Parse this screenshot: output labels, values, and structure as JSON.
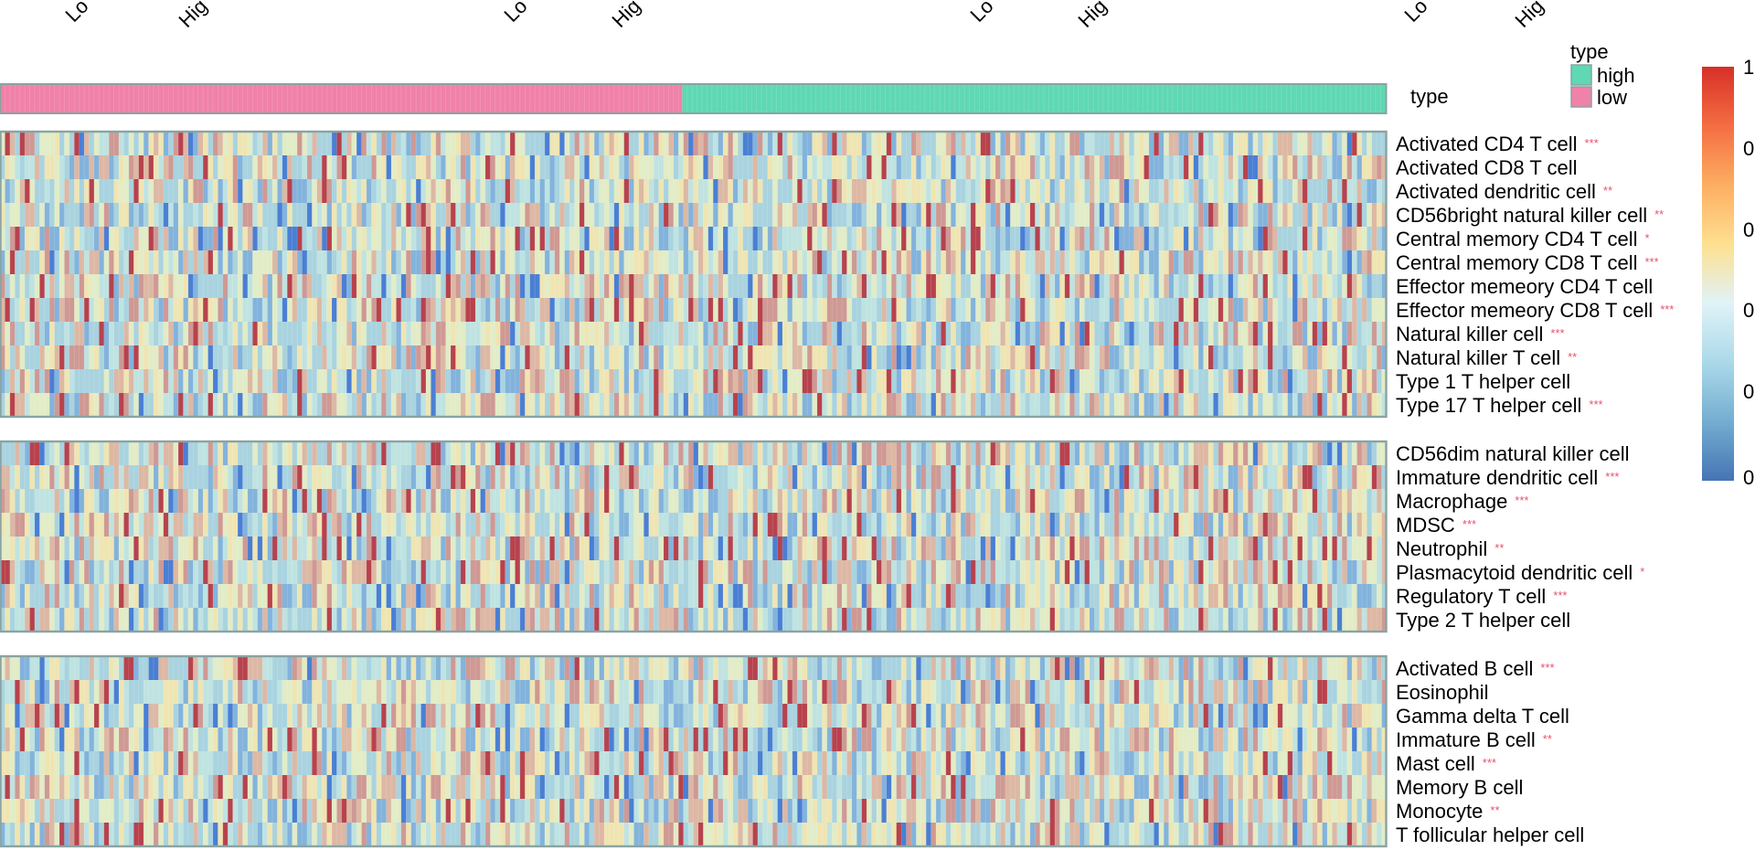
{
  "chart_data": {
    "type": "heatmap",
    "top_labels": [
      "Lo",
      "Hig",
      "Lo",
      "Hig",
      "Lo",
      "Hig",
      "Lo",
      "Hig"
    ],
    "annotation": {
      "label": "type",
      "groups": [
        {
          "name": "low",
          "fraction": 0.492,
          "color": "#f081a8"
        },
        {
          "name": "high",
          "fraction": 0.508,
          "color": "#5fd8b3"
        }
      ]
    },
    "legend": {
      "title": "type",
      "entries": [
        {
          "label": "high",
          "color": "#5fd8b3"
        },
        {
          "label": "low",
          "color": "#f081a8"
        }
      ]
    },
    "colorbar": {
      "tick_labels": [
        "1",
        "0",
        "0",
        "0",
        "0",
        "0"
      ],
      "colors": [
        "#d73027",
        "#f46d43",
        "#fdae61",
        "#fee090",
        "#e0f3f8",
        "#abd9e9",
        "#74add1",
        "#4575b4"
      ]
    },
    "heat_palette": [
      "#4a7fd4",
      "#83b3dc",
      "#a9d3df",
      "#bfe3e1",
      "#e2ecc6",
      "#efe5b3",
      "#ddb8a4",
      "#cf9994",
      "#b7424d"
    ],
    "row_groups": [
      {
        "rows": [
          {
            "label": "Activated CD4 T cell",
            "sig": "***"
          },
          {
            "label": "Activated CD8 T cell",
            "sig": ""
          },
          {
            "label": "Activated dendritic cell",
            "sig": "**"
          },
          {
            "label": "CD56bright natural killer cell",
            "sig": "**"
          },
          {
            "label": "Central memory CD4 T cell",
            "sig": "*"
          },
          {
            "label": "Central memory CD8 T cell",
            "sig": "***"
          },
          {
            "label": "Effector memeory CD4 T cell",
            "sig": ""
          },
          {
            "label": "Effector memeory CD8 T cell",
            "sig": "***"
          },
          {
            "label": "Natural killer cell",
            "sig": "***"
          },
          {
            "label": "Natural killer T cell",
            "sig": "**"
          },
          {
            "label": "Type 1 T helper cell",
            "sig": ""
          },
          {
            "label": "Type 17 T helper cell",
            "sig": "***"
          }
        ]
      },
      {
        "rows": [
          {
            "label": "CD56dim natural killer cell",
            "sig": ""
          },
          {
            "label": "Immature dendritic cell",
            "sig": "***"
          },
          {
            "label": "Macrophage",
            "sig": "***"
          },
          {
            "label": "MDSC",
            "sig": "***"
          },
          {
            "label": "Neutrophil",
            "sig": "**"
          },
          {
            "label": "Plasmacytoid dendritic cell",
            "sig": "*"
          },
          {
            "label": "Regulatory T cell",
            "sig": "***"
          },
          {
            "label": "Type 2 T helper cell",
            "sig": ""
          }
        ]
      },
      {
        "rows": [
          {
            "label": "Activated B cell",
            "sig": "***"
          },
          {
            "label": "Eosinophil",
            "sig": ""
          },
          {
            "label": "Gamma delta T cell",
            "sig": ""
          },
          {
            "label": "Immature  B cell",
            "sig": "**"
          },
          {
            "label": "Mast cell",
            "sig": "***"
          },
          {
            "label": "Memory B cell",
            "sig": ""
          },
          {
            "label": "Monocyte",
            "sig": "**"
          },
          {
            "label": "T follicular helper cell",
            "sig": ""
          }
        ]
      }
    ]
  }
}
